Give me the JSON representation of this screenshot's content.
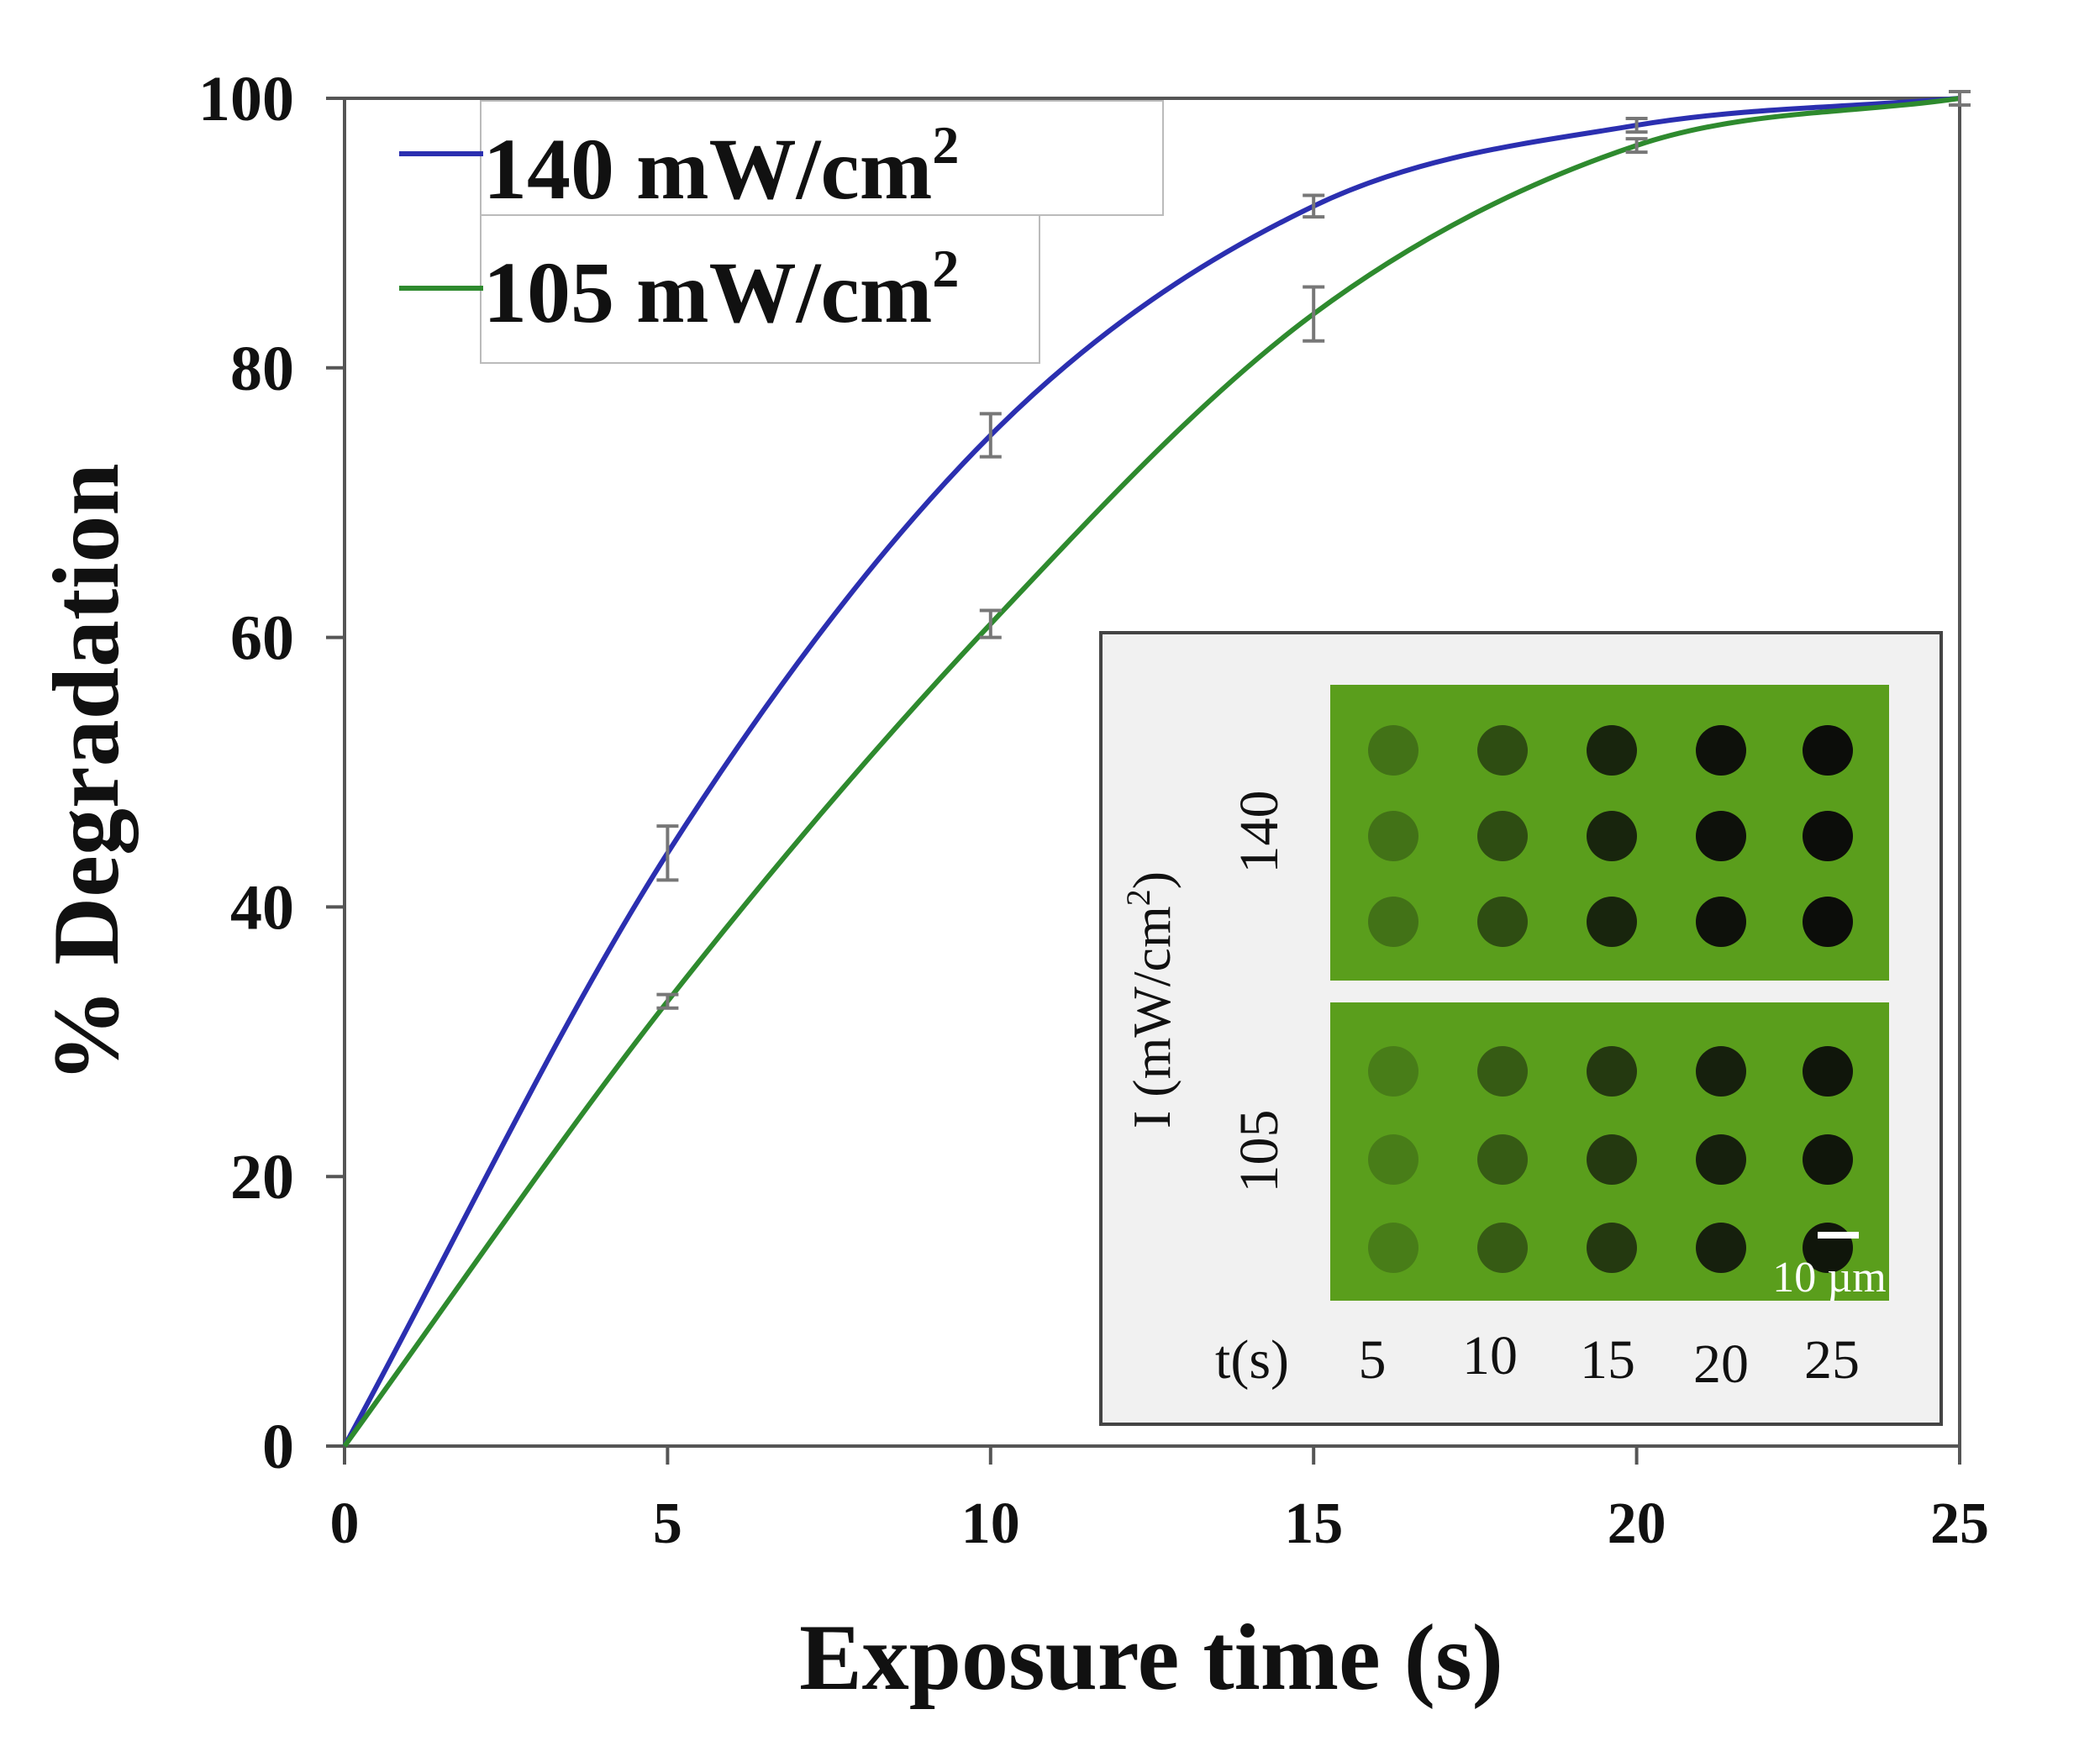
{
  "chart_data": {
    "type": "line",
    "title": "",
    "xlabel": "Exposure time (s)",
    "ylabel": "% Degradation",
    "xlim": [
      0,
      25
    ],
    "ylim": [
      0,
      100
    ],
    "xticks": [
      0,
      5,
      10,
      15,
      20,
      25
    ],
    "yticks": [
      0,
      20,
      40,
      60,
      80,
      100
    ],
    "x_tick_labels": [
      "0",
      "5",
      "10",
      "15",
      "20",
      "25"
    ],
    "y_tick_labels": [
      "0",
      "20",
      "40",
      "60",
      "80",
      "100"
    ],
    "grid": false,
    "legend_position": "top-left",
    "series": [
      {
        "name": "140 mW/cm²",
        "label_main": "140 mW/cm",
        "label_sup": "2",
        "color": "#2b2fb0",
        "x": [
          0,
          5,
          10,
          15,
          20,
          25
        ],
        "y": [
          0,
          44,
          75,
          92,
          98,
          100
        ],
        "error": [
          0,
          2,
          1.6,
          0.8,
          0.5,
          0.5
        ]
      },
      {
        "name": "105 mW/cm²",
        "label_main": "105 mW/cm",
        "label_sup": "2",
        "color": "#2e8a2e",
        "x": [
          0,
          5,
          10,
          15,
          20,
          25
        ],
        "y": [
          0,
          33,
          61,
          84,
          96.5,
          100
        ],
        "error": [
          0,
          0.5,
          1.0,
          2.0,
          0.5,
          0.5
        ]
      }
    ],
    "inset": {
      "ylabel_main": "I (mW/cm",
      "ylabel_sup": "2",
      "ylabel_end": ")",
      "row_labels": [
        "140",
        "105"
      ],
      "xlabel": "t(s)",
      "columns": [
        "5",
        "10",
        "15",
        "20",
        "25"
      ],
      "scale_bar_label": "10 µm",
      "panel_color": "#5a9e1c",
      "darkness_140": [
        0.3,
        0.55,
        0.82,
        0.95,
        0.98
      ],
      "darkness_105": [
        0.22,
        0.45,
        0.68,
        0.85,
        0.92
      ]
    }
  }
}
